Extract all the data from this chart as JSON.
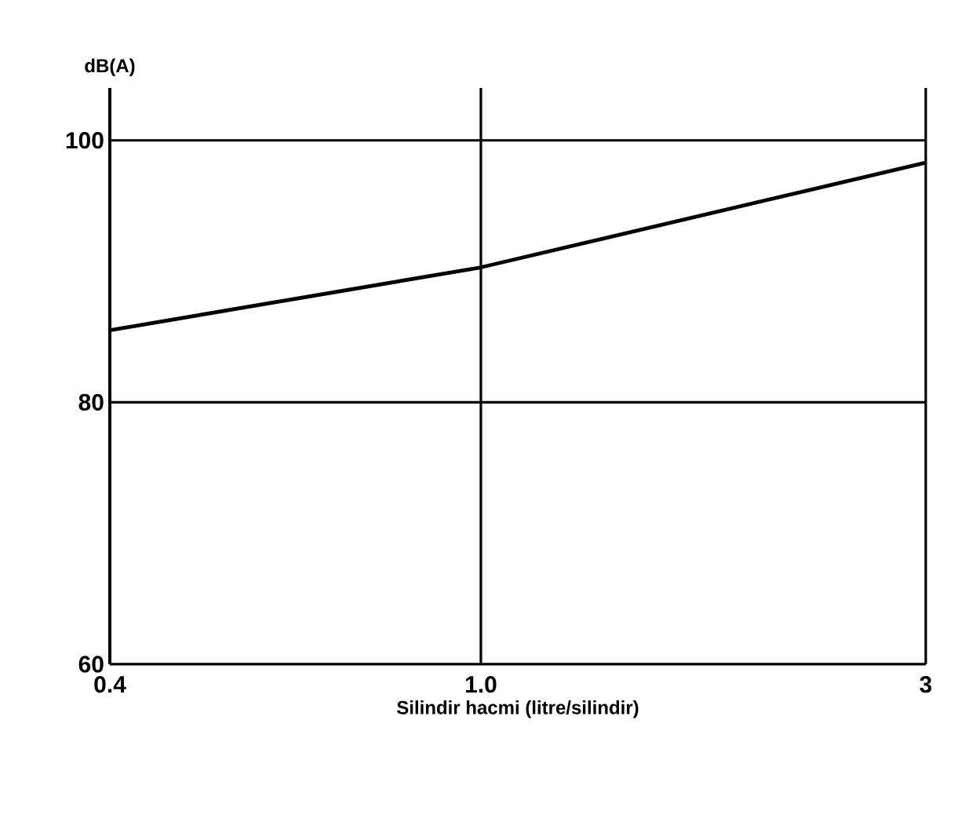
{
  "chart_data": {
    "type": "line",
    "xlabel": "Silindir hacmi  (litre/silindir)",
    "ylabel": "dB(A)",
    "x": [
      0.4,
      1.0,
      3
    ],
    "series": [
      {
        "color": "#000000",
        "values": [
          85.5,
          90.3,
          98.3
        ]
      }
    ],
    "log": "x",
    "xlim": [
      0.4,
      3
    ],
    "ylim": [
      60,
      104
    ],
    "xticks": [
      0.4,
      {
        "value": 1.0,
        "label": "1.0"
      },
      3
    ],
    "yticks": [
      60,
      80,
      100
    ],
    "grid": true,
    "marker": "none",
    "line_style": "solid"
  }
}
